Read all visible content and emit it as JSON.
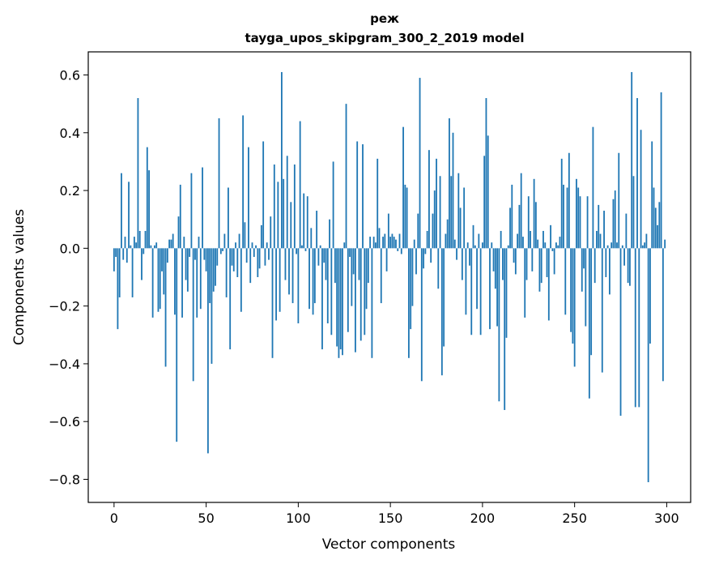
{
  "chart_data": {
    "type": "bar",
    "title_line1": "реж",
    "title_line2": "tayga_upos_skipgram_300_2_2019 model",
    "xlabel": "Vector components",
    "ylabel": "Components values",
    "xlim": [
      -14,
      313
    ],
    "ylim": [
      -0.88,
      0.68
    ],
    "x_ticks": [
      0,
      50,
      100,
      150,
      200,
      250,
      300
    ],
    "x_tick_labels": [
      "0",
      "50",
      "100",
      "150",
      "200",
      "250",
      "300"
    ],
    "y_ticks": [
      -0.8,
      -0.6,
      -0.4,
      -0.2,
      0.0,
      0.2,
      0.4,
      0.6
    ],
    "y_tick_labels": [
      "−0.8",
      "−0.6",
      "−0.4",
      "−0.2",
      "0.0",
      "0.2",
      "0.4",
      "0.6"
    ],
    "bar_color": "#1f77b4",
    "values": [
      -0.08,
      -0.03,
      -0.28,
      -0.17,
      0.26,
      -0.04,
      0.04,
      -0.05,
      0.23,
      0.01,
      -0.17,
      0.04,
      0.02,
      0.52,
      0.06,
      -0.11,
      -0.02,
      0.06,
      0.35,
      0.27,
      0.01,
      -0.24,
      0.01,
      0.02,
      -0.22,
      -0.21,
      -0.08,
      -0.16,
      -0.41,
      -0.05,
      0.03,
      0.03,
      0.05,
      -0.23,
      -0.67,
      0.11,
      0.22,
      -0.24,
      0.04,
      -0.11,
      -0.15,
      -0.03,
      0.26,
      -0.46,
      -0.04,
      -0.24,
      0.04,
      -0.21,
      0.28,
      -0.04,
      -0.08,
      -0.71,
      -0.19,
      -0.4,
      -0.15,
      -0.13,
      -0.06,
      0.45,
      -0.02,
      -0.01,
      0.05,
      -0.17,
      0.21,
      -0.35,
      -0.06,
      -0.08,
      0.02,
      -0.1,
      0.05,
      -0.22,
      0.46,
      0.09,
      -0.05,
      0.35,
      -0.12,
      0.02,
      -0.03,
      0.01,
      -0.1,
      -0.07,
      0.08,
      0.37,
      -0.06,
      0.02,
      -0.04,
      0.11,
      -0.38,
      0.29,
      -0.25,
      0.23,
      -0.22,
      0.61,
      0.24,
      -0.11,
      0.32,
      -0.16,
      0.16,
      -0.19,
      0.29,
      -0.02,
      -0.26,
      0.44,
      0.01,
      0.19,
      -0.01,
      0.18,
      -0.21,
      0.07,
      -0.23,
      -0.19,
      0.13,
      -0.06,
      0.01,
      -0.35,
      -0.05,
      -0.11,
      -0.26,
      0.1,
      -0.3,
      0.3,
      -0.12,
      -0.34,
      -0.38,
      -0.35,
      -0.37,
      0.02,
      0.5,
      -0.29,
      -0.03,
      -0.2,
      -0.09,
      -0.36,
      0.37,
      -0.11,
      -0.32,
      0.36,
      -0.3,
      -0.21,
      -0.12,
      0.04,
      -0.38,
      0.04,
      0.02,
      0.31,
      0.07,
      -0.19,
      0.04,
      0.05,
      -0.08,
      0.12,
      0.04,
      0.05,
      0.04,
      0.03,
      -0.01,
      0.05,
      -0.02,
      0.42,
      0.22,
      0.21,
      -0.38,
      -0.28,
      -0.2,
      0.03,
      -0.09,
      0.12,
      0.59,
      -0.46,
      -0.07,
      -0.02,
      0.06,
      0.34,
      -0.05,
      0.12,
      0.2,
      0.31,
      -0.14,
      0.25,
      -0.44,
      -0.34,
      0.05,
      0.1,
      0.45,
      0.25,
      0.4,
      0.03,
      -0.04,
      0.26,
      0.14,
      -0.11,
      0.21,
      -0.23,
      0.02,
      -0.06,
      -0.3,
      0.08,
      0.01,
      -0.21,
      0.05,
      -0.3,
      0.02,
      0.32,
      0.52,
      0.39,
      -0.28,
      0.02,
      -0.08,
      -0.14,
      -0.27,
      -0.53,
      0.06,
      -0.11,
      -0.56,
      -0.31,
      0.01,
      0.14,
      0.22,
      -0.05,
      -0.09,
      0.05,
      0.15,
      0.26,
      0.04,
      -0.24,
      -0.11,
      0.18,
      0.06,
      -0.08,
      0.24,
      0.16,
      0.03,
      -0.15,
      -0.12,
      0.06,
      0.02,
      -0.1,
      -0.25,
      0.08,
      -0.01,
      -0.09,
      0.02,
      0.01,
      0.04,
      0.31,
      0.22,
      -0.23,
      0.21,
      0.33,
      -0.29,
      -0.33,
      -0.41,
      0.24,
      0.21,
      0.18,
      -0.15,
      -0.07,
      -0.27,
      0.18,
      -0.52,
      -0.37,
      0.42,
      -0.12,
      0.06,
      0.15,
      0.05,
      -0.43,
      0.13,
      -0.1,
      0.01,
      -0.16,
      0.02,
      0.17,
      0.2,
      0.02,
      0.33,
      -0.58,
      0.01,
      -0.06,
      0.12,
      -0.12,
      -0.13,
      0.61,
      0.25,
      -0.55,
      0.52,
      -0.55,
      0.41,
      0.01,
      0.02,
      0.05,
      -0.81,
      -0.33,
      0.37,
      0.21,
      0.14,
      0.08,
      0.16,
      0.54,
      -0.46,
      0.03
    ]
  }
}
